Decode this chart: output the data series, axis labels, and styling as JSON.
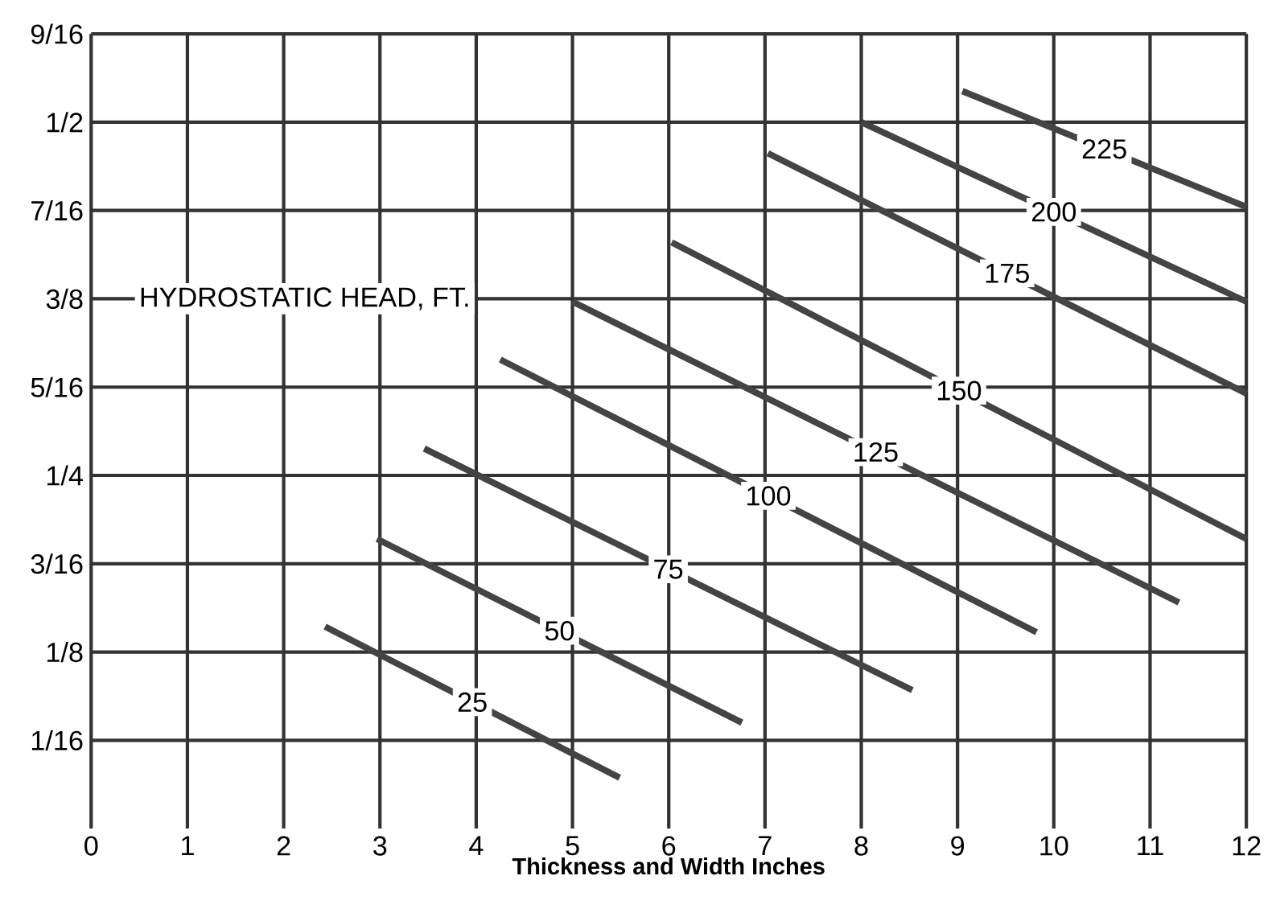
{
  "chart_data": {
    "type": "line",
    "xlabel": "Thickness and Width Inches",
    "annotations": [
      "HYDROSTATIC HEAD, FT."
    ],
    "xlim": [
      0,
      12
    ],
    "ylim": [
      0,
      0.5625
    ],
    "xticks": [
      0,
      1,
      2,
      3,
      4,
      5,
      6,
      7,
      8,
      9,
      10,
      11,
      12
    ],
    "yticks": [
      {
        "value": 0.0625,
        "label": "1/16"
      },
      {
        "value": 0.125,
        "label": "1/8"
      },
      {
        "value": 0.1875,
        "label": "3/16"
      },
      {
        "value": 0.25,
        "label": "1/4"
      },
      {
        "value": 0.3125,
        "label": "5/16"
      },
      {
        "value": 0.375,
        "label": "3/8"
      },
      {
        "value": 0.4375,
        "label": "7/16"
      },
      {
        "value": 0.5,
        "label": "1/2"
      },
      {
        "value": 0.5625,
        "label": "9/16"
      }
    ],
    "grid": true,
    "marker": "none",
    "line_style": "solid",
    "series": [
      {
        "name": "25",
        "color": "#444444",
        "x": [
          2.43,
          5.49
        ],
        "values": [
          0.143,
          0.036
        ]
      },
      {
        "name": "50",
        "color": "#444444",
        "x": [
          2.97,
          6.76
        ],
        "values": [
          0.205,
          0.075
        ]
      },
      {
        "name": "75",
        "color": "#444444",
        "x": [
          3.46,
          8.53
        ],
        "values": [
          0.269,
          0.098
        ]
      },
      {
        "name": "100",
        "color": "#444444",
        "x": [
          4.25,
          9.82
        ],
        "values": [
          0.332,
          0.139
        ]
      },
      {
        "name": "125",
        "color": "#444444",
        "x": [
          5.0,
          11.3
        ],
        "values": [
          0.373,
          0.16
        ]
      },
      {
        "name": "150",
        "color": "#444444",
        "x": [
          6.03,
          12.0
        ],
        "values": [
          0.415,
          0.205
        ]
      },
      {
        "name": "175",
        "color": "#444444",
        "x": [
          7.03,
          12.0
        ],
        "values": [
          0.478,
          0.308
        ]
      },
      {
        "name": "200",
        "color": "#444444",
        "x": [
          8.0,
          12.0
        ],
        "values": [
          0.5,
          0.373
        ]
      },
      {
        "name": "225",
        "color": "#444444",
        "x": [
          9.05,
          12.0
        ],
        "values": [
          0.522,
          0.44
        ]
      }
    ]
  }
}
